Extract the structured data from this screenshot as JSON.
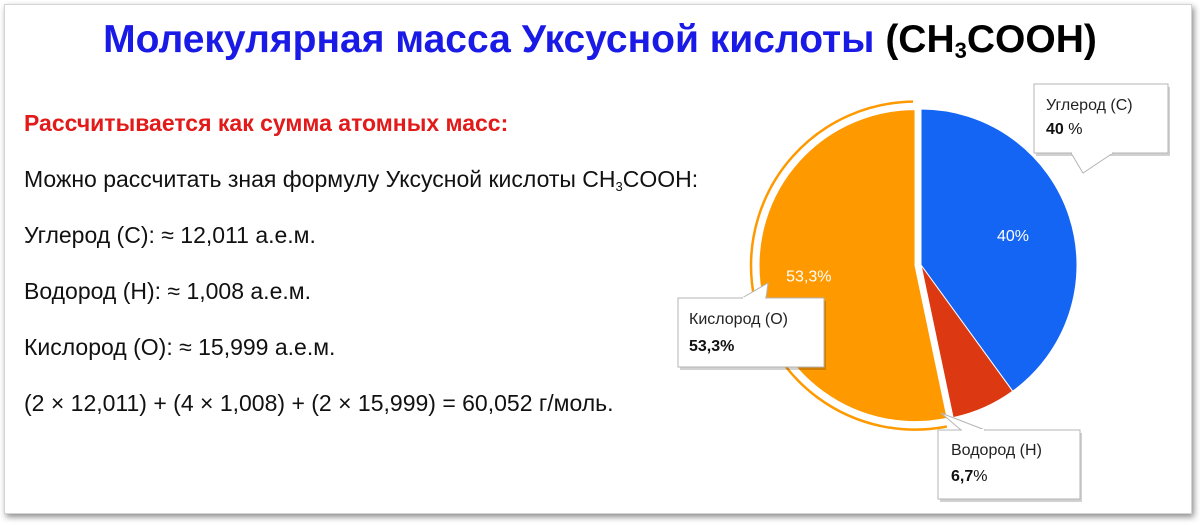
{
  "title": {
    "main": "Молекулярная масса Уксусной кислоты",
    "formula_open": "(CH",
    "formula_sub": "3",
    "formula_close": "COOH)"
  },
  "subheading": "Рассчитывается как сумма атомных масс:",
  "lines": {
    "formula_line_pre": "Можно рассчитать зная формулу Уксусной кислоты CH",
    "formula_line_sub": "3",
    "formula_line_post": "COOH:",
    "carbon": "Углерод (C): ≈ 12,011 а.е.м.",
    "hydrogen": "Водород (H): ≈ 1,008 а.е.м.",
    "oxygen": "Кислород (O): ≈ 15,999 а.е.м.",
    "sum": "(2 × 12,011) + (4 × 1,008) + (2 × 15,999) = 60,052 г/моль."
  },
  "colors": {
    "title": "#1a1ae6",
    "subheading": "#e21a1a",
    "carbon": "#1565f5",
    "hydrogen": "#dc3912",
    "oxygen": "#ff9900"
  },
  "chart_data": {
    "type": "pie",
    "title": "",
    "slices": [
      {
        "label": "Углерод (C)",
        "value": 40,
        "color": "#1565f5",
        "inner_label": "40%",
        "callout_value": "40",
        "callout_unit": " %"
      },
      {
        "label": "Водород (H)",
        "value": 6.7,
        "color": "#dc3912",
        "inner_label": "",
        "callout_value": "6,7",
        "callout_unit": "%"
      },
      {
        "label": "Кислород (O)",
        "value": 53.3,
        "color": "#ff9900",
        "inner_label": "53,3%",
        "callout_value": "53,3%",
        "callout_unit": ""
      }
    ]
  }
}
